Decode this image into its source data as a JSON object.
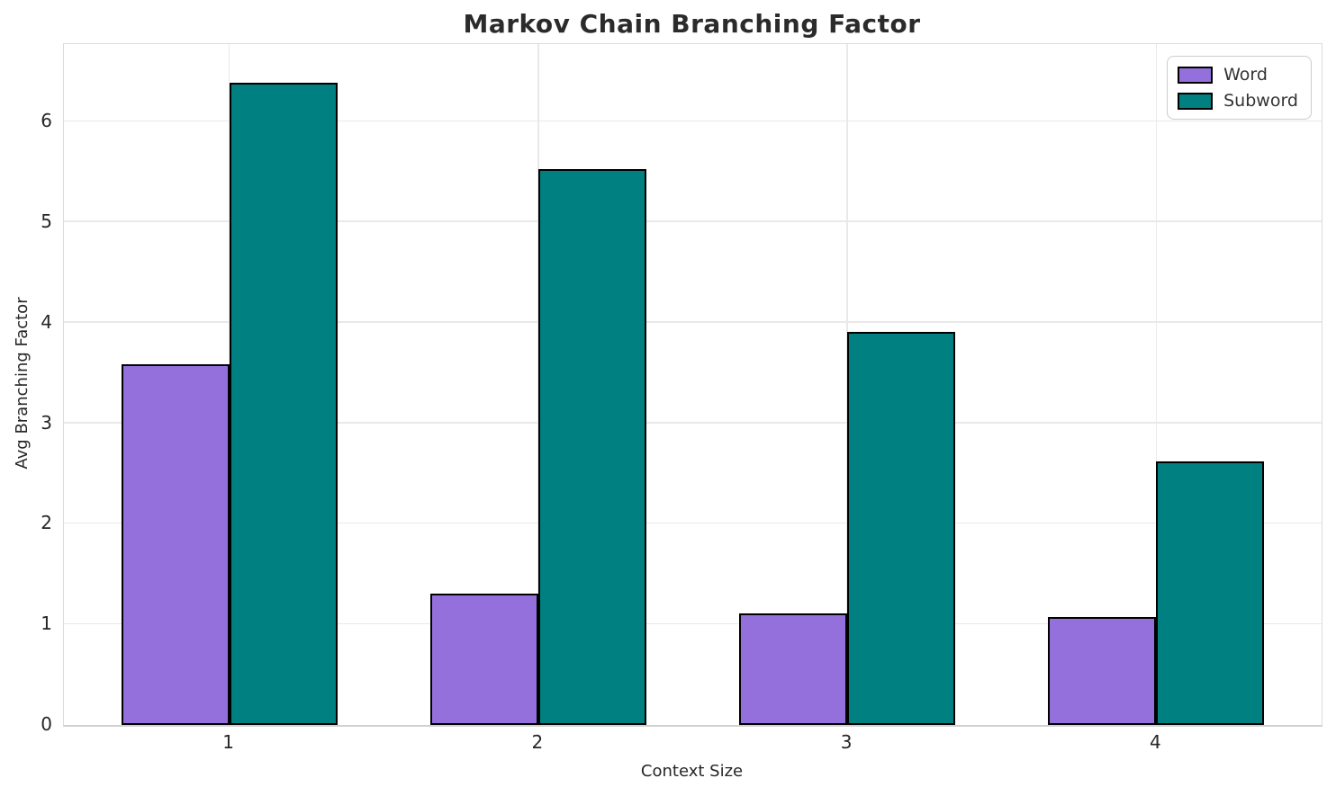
{
  "chart_data": {
    "type": "bar",
    "title": "Markov Chain Branching Factor",
    "xlabel": "Context Size",
    "ylabel": "Avg Branching Factor",
    "categories": [
      "1",
      "2",
      "3",
      "4"
    ],
    "x_positions": [
      1,
      2,
      3,
      4
    ],
    "series": [
      {
        "name": "Word",
        "color": "#9370DB",
        "values": [
          3.59,
          1.31,
          1.11,
          1.07
        ]
      },
      {
        "name": "Subword",
        "color": "#008080",
        "values": [
          6.39,
          5.53,
          3.91,
          2.62
        ]
      }
    ],
    "bar_width": 0.35,
    "yticks": [
      0,
      1,
      2,
      3,
      4,
      5,
      6
    ],
    "ylim": [
      0,
      6.77
    ],
    "xlim": [
      0.465,
      4.535
    ],
    "grid": true,
    "legend_position": "top-right",
    "colors": {
      "bar_edge": "#000000",
      "grid": "#e9e9e9",
      "text": "#262626",
      "title_text": "#2b2b2b"
    }
  }
}
